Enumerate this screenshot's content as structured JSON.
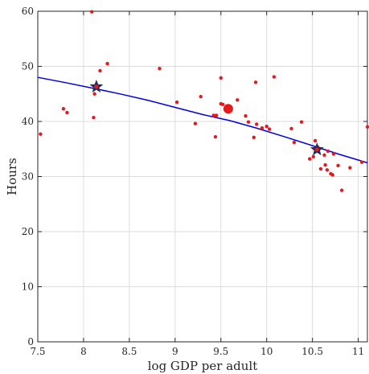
{
  "chart_data": {
    "type": "scatter",
    "title": "",
    "xlabel": "log GDP per adult",
    "ylabel": "Hours",
    "xlim": [
      7.5,
      11.1
    ],
    "ylim": [
      0,
      60
    ],
    "xticks": [
      7.5,
      8,
      8.5,
      9,
      9.5,
      10,
      10.5,
      11
    ],
    "xtick_labels": [
      "7.5",
      "8",
      "8.5",
      "9",
      "9.5",
      "10",
      "10.5",
      "11"
    ],
    "yticks": [
      0,
      10,
      20,
      30,
      40,
      50,
      60
    ],
    "ytick_labels": [
      "0",
      "10",
      "20",
      "30",
      "40",
      "50",
      "60"
    ],
    "grid": true,
    "legend": "none",
    "colors": {
      "points": "#e41a1c",
      "fit": "#0000e0",
      "star": "#1f2a5c",
      "axis": "#262626",
      "grid": "#dcdcdc"
    },
    "series": [
      {
        "kind": "points",
        "x": [
          7.53,
          7.78,
          7.82,
          8.09,
          8.11,
          8.12,
          8.14,
          8.18,
          8.26,
          8.83,
          9.02,
          9.22,
          9.28,
          9.42,
          9.44,
          9.45,
          9.5,
          9.5,
          9.52,
          9.68,
          9.77,
          9.8,
          9.86,
          9.88,
          9.89,
          9.95,
          10.0,
          10.03,
          10.08,
          10.27,
          10.3,
          10.38,
          10.47,
          10.51,
          10.53,
          10.56,
          10.59,
          10.63,
          10.64,
          10.66,
          10.67,
          10.7,
          10.72,
          10.73,
          10.78,
          10.82,
          10.91,
          11.04,
          11.1
        ],
        "y": [
          37.7,
          42.3,
          41.6,
          59.9,
          40.7,
          45.0,
          46.3,
          49.2,
          50.5,
          49.6,
          43.5,
          39.6,
          44.5,
          41.1,
          37.2,
          41.1,
          43.2,
          47.9,
          43.1,
          43.9,
          41.0,
          39.9,
          37.1,
          47.1,
          39.5,
          38.8,
          39.1,
          38.6,
          48.1,
          38.7,
          36.2,
          39.9,
          33.2,
          33.6,
          36.5,
          35.3,
          31.4,
          33.9,
          32.1,
          31.2,
          34.6,
          30.5,
          30.3,
          34.1,
          32.0,
          27.5,
          31.6,
          32.6,
          39.0
        ]
      },
      {
        "kind": "highlight",
        "x": [
          9.58
        ],
        "y": [
          42.3
        ]
      },
      {
        "kind": "stars",
        "x": [
          8.14,
          10.55
        ],
        "y": [
          46.3,
          34.9
        ]
      },
      {
        "kind": "fit-line",
        "x": [
          7.5,
          7.8,
          8.1,
          8.4,
          8.7,
          9.0,
          9.3,
          9.6,
          9.9,
          10.2,
          10.5,
          10.8,
          11.1
        ],
        "y": [
          48.0,
          47.05,
          46.05,
          45.0,
          43.85,
          42.55,
          41.25,
          40.15,
          38.75,
          37.2,
          35.6,
          34.0,
          32.5
        ]
      }
    ]
  }
}
